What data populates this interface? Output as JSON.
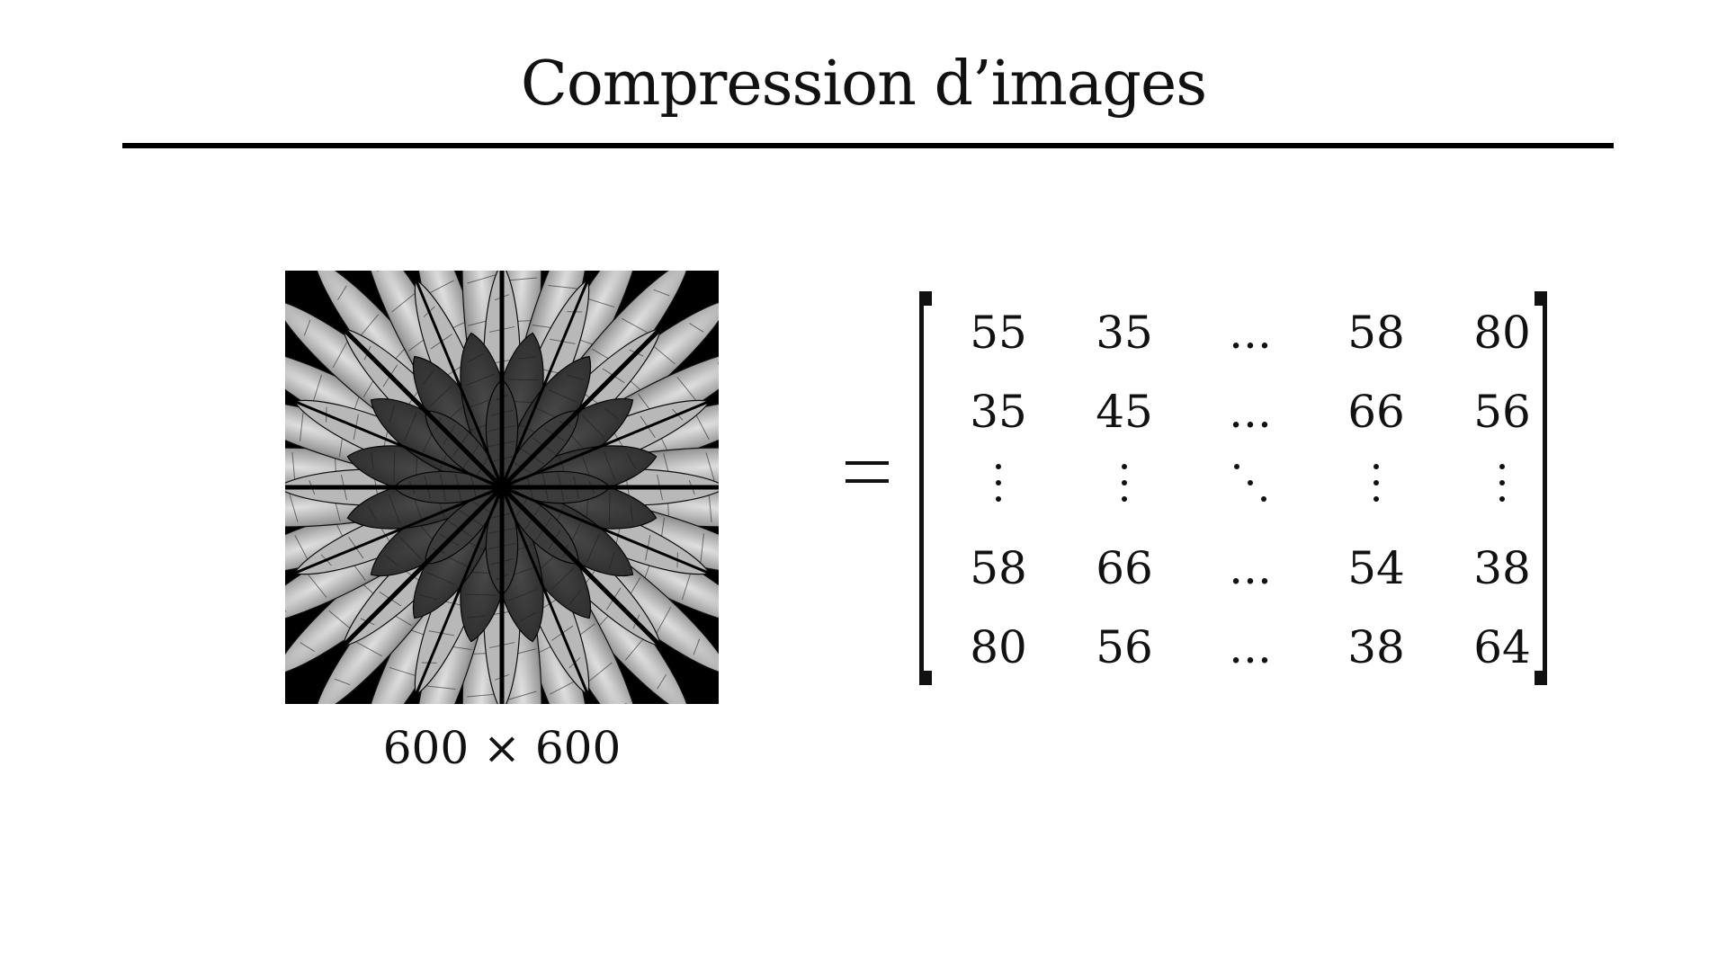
{
  "slide": {
    "title": "Compression d’images",
    "image_caption": "600 × 600"
  },
  "matrix": {
    "rows": [
      [
        "55",
        "35",
        "...",
        "58",
        "80"
      ],
      [
        "35",
        "45",
        "...",
        "66",
        "56"
      ],
      [
        "58",
        "66",
        "...",
        "54",
        "38"
      ],
      [
        "80",
        "56",
        "...",
        "38",
        "64"
      ]
    ]
  },
  "colors": {
    "background": "#ffffff",
    "ink": "#111111"
  }
}
